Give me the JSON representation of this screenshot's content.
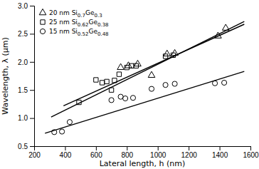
{
  "chart_data": {
    "type": "scatter",
    "x_label": "Lateral length, h (nm)",
    "y_label": "Wavelength, λ (μm)",
    "xlim": [
      200,
      1600
    ],
    "ylim": [
      0.5,
      3.0
    ],
    "xticks": [
      200,
      400,
      600,
      800,
      1000,
      1200,
      1400,
      1600
    ],
    "yticks": [
      0.5,
      {
        "value": 1.0,
        "label": "1.0"
      },
      1.5,
      {
        "value": 2.0,
        "label": "2.0"
      },
      2.5,
      {
        "value": 3.0,
        "label": "3.0"
      }
    ],
    "color": "black",
    "grid": false,
    "legend": "upper left",
    "series": [
      {
        "type": "line",
        "line_style": "solid",
        "x": [
          310,
          1560
        ],
        "values": [
          1.02,
          2.72
        ]
      },
      {
        "type": "scatter",
        "name": "20 nm Si0.7Ge0.3",
        "marker": "triangle",
        "x": [
          760,
          810,
          870,
          960,
          1060,
          1110,
          1390,
          1440
        ],
        "values": [
          1.9,
          1.93,
          1.96,
          1.76,
          2.14,
          2.15,
          2.46,
          2.6
        ]
      },
      {
        "type": "line",
        "line_style": "solid",
        "x": [
          390,
          1560
        ],
        "values": [
          1.22,
          2.67
        ]
      },
      {
        "type": "scatter",
        "name": "25 nm Si0.62Ge0.38",
        "marker": "square",
        "x": [
          490,
          600,
          640,
          670,
          700,
          720,
          750,
          800,
          830,
          860,
          1050,
          1100
        ],
        "values": [
          1.28,
          1.68,
          1.63,
          1.65,
          1.5,
          1.67,
          1.78,
          1.9,
          1.93,
          1.93,
          2.1,
          2.12
        ]
      },
      {
        "type": "line",
        "line_style": "solid",
        "x": [
          270,
          1560
        ],
        "values": [
          0.73,
          1.83
        ]
      },
      {
        "type": "scatter",
        "name": "15 nm Si0.52Ge0.48",
        "marker": "circle",
        "x": [
          330,
          380,
          430,
          700,
          760,
          790,
          840,
          960,
          1050,
          1110,
          1370,
          1430
        ],
        "values": [
          0.75,
          0.76,
          0.93,
          1.32,
          1.38,
          1.35,
          1.36,
          1.52,
          1.59,
          1.61,
          1.62,
          1.63
        ]
      }
    ]
  }
}
